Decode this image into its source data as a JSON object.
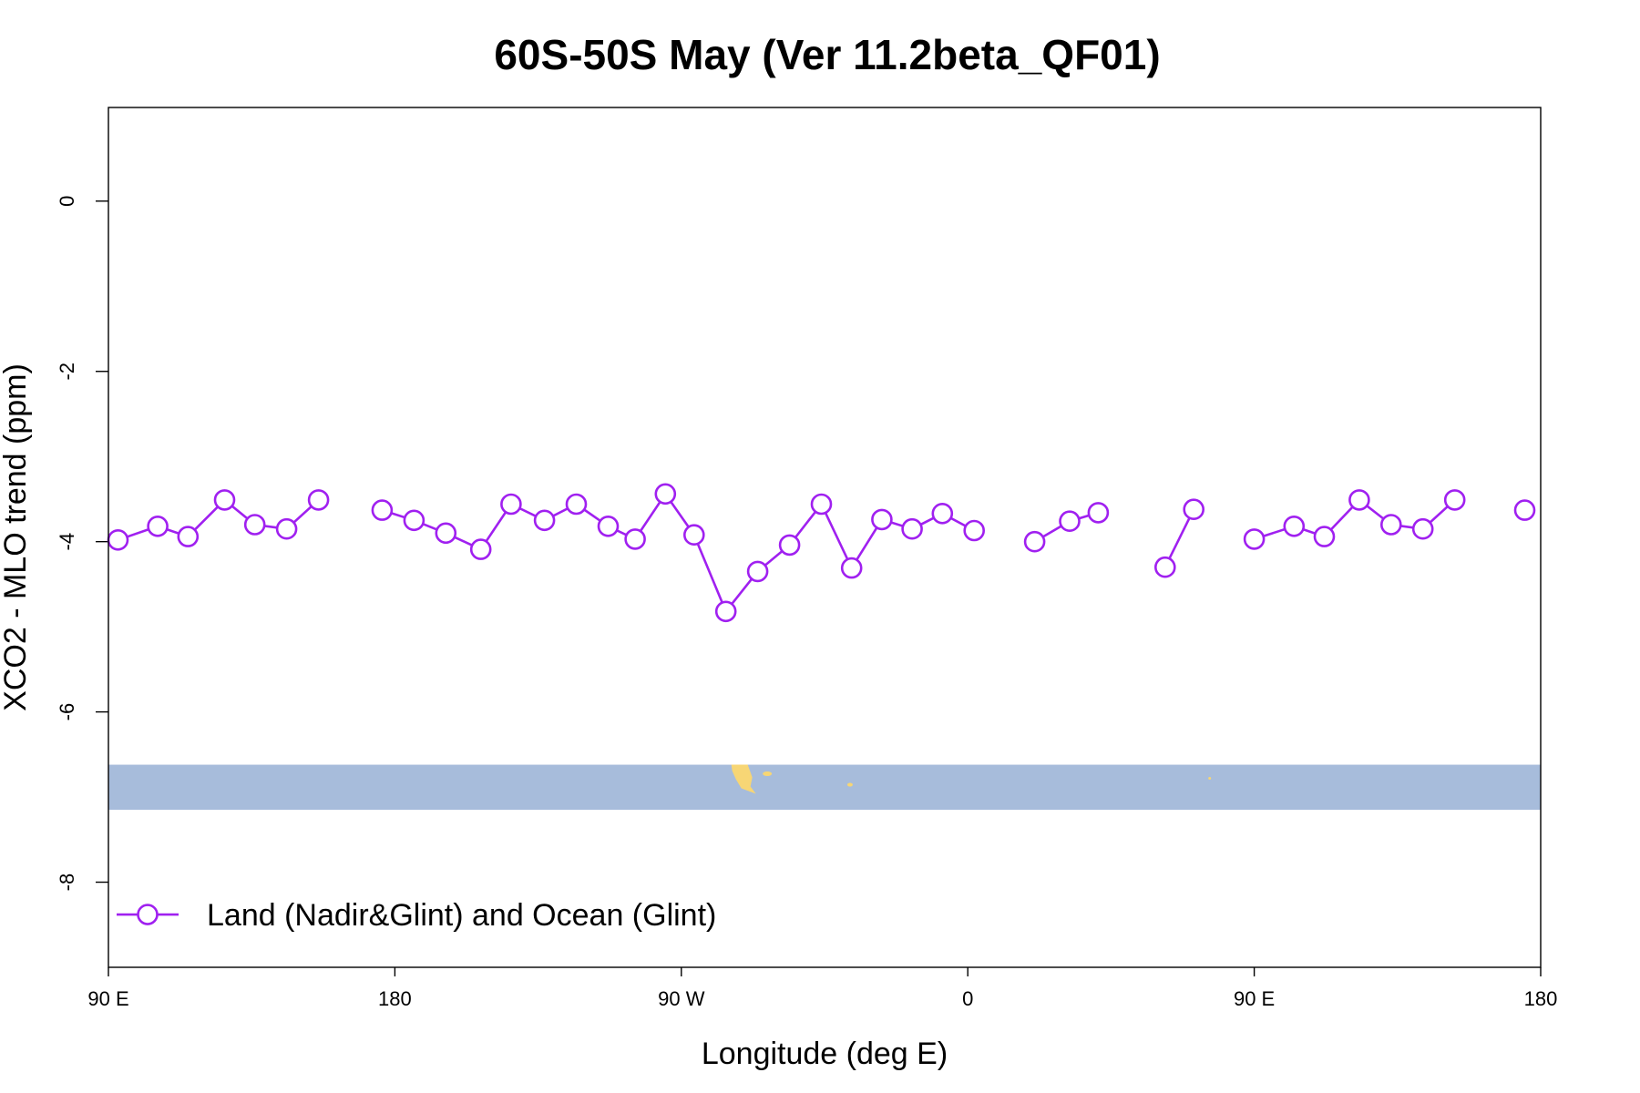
{
  "chart_data": {
    "type": "line",
    "title": "60S-50S May (Ver 11.2beta_QF01)",
    "xlabel": "Longitude (deg E)",
    "ylabel": "XCO2 - MLO trend (ppm)",
    "xlim": [
      90,
      540
    ],
    "ylim": [
      -9.0,
      1.1
    ],
    "x_ticks": [
      {
        "value": 90,
        "label": "90 E"
      },
      {
        "value": 180,
        "label": "180"
      },
      {
        "value": 270,
        "label": "90 W"
      },
      {
        "value": 360,
        "label": "0"
      },
      {
        "value": 450,
        "label": "90 E"
      },
      {
        "value": 540,
        "label": "180"
      }
    ],
    "y_ticks": [
      {
        "value": 0,
        "label": "0"
      },
      {
        "value": -2,
        "label": "-2"
      },
      {
        "value": -4,
        "label": "-4"
      },
      {
        "value": -6,
        "label": "-6"
      },
      {
        "value": -8,
        "label": "-8"
      }
    ],
    "colors": {
      "series": "#a020f0",
      "map_ocean": "#a7bcdb",
      "map_land": "#f7d675"
    },
    "map_strip": {
      "y_top": -6.62,
      "y_bottom": -7.15
    },
    "series": [
      {
        "name": "Land (Nadir&Glint) and Ocean (Glint)",
        "segments": [
          [
            [
              93,
              -3.98
            ],
            [
              105.5,
              -3.82
            ],
            [
              115,
              -3.94
            ],
            [
              126.5,
              -3.51
            ],
            [
              136,
              -3.8
            ],
            [
              146,
              -3.85
            ],
            [
              156,
              -3.51
            ]
          ],
          [
            [
              176,
              -3.63
            ],
            [
              186,
              -3.75
            ],
            [
              196,
              -3.9
            ],
            [
              207,
              -4.09
            ],
            [
              216.5,
              -3.56
            ],
            [
              227,
              -3.75
            ],
            [
              237,
              -3.56
            ],
            [
              247,
              -3.82
            ],
            [
              255.5,
              -3.97
            ],
            [
              265,
              -3.44
            ],
            [
              274,
              -3.92
            ],
            [
              284,
              -4.82
            ],
            [
              294,
              -4.35
            ],
            [
              304,
              -4.04
            ],
            [
              314,
              -3.56
            ],
            [
              323.5,
              -4.31
            ],
            [
              333,
              -3.74
            ],
            [
              342.5,
              -3.85
            ],
            [
              352,
              -3.67
            ],
            [
              362,
              -3.87
            ]
          ],
          [
            [
              381,
              -4.0
            ],
            [
              392,
              -3.76
            ],
            [
              401,
              -3.66
            ]
          ],
          [
            [
              422,
              -4.3
            ],
            [
              431,
              -3.62
            ]
          ],
          [
            [
              450,
              -3.97
            ],
            [
              462.5,
              -3.82
            ],
            [
              472,
              -3.94
            ],
            [
              483,
              -3.51
            ],
            [
              493,
              -3.8
            ],
            [
              503,
              -3.85
            ],
            [
              513,
              -3.51
            ]
          ],
          [
            [
              535,
              -3.63
            ]
          ]
        ]
      }
    ],
    "legend": {
      "position": "bottom-left",
      "label": "Land (Nadir&Glint) and Ocean (Glint)"
    }
  }
}
